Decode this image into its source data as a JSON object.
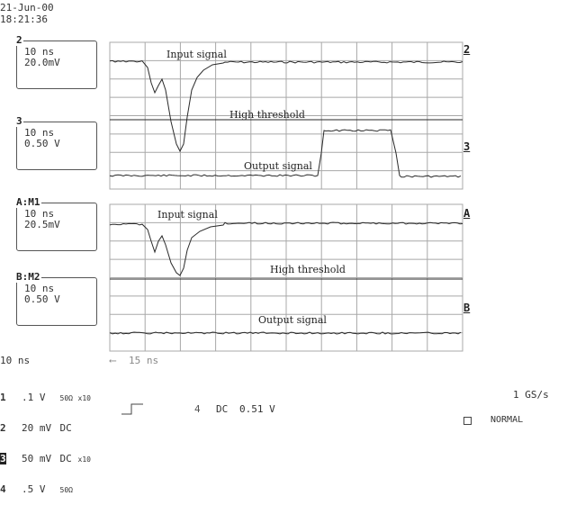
{
  "header": {
    "date": "21-Jun-00",
    "time": "18:21:36"
  },
  "traces": [
    {
      "tag": "2",
      "timebase": "10 ns",
      "scale": "20.0mV",
      "marker": "2"
    },
    {
      "tag": "3",
      "timebase": "10 ns",
      "scale": "0.50 V",
      "marker": "3"
    },
    {
      "tag": "A:M1",
      "timebase": "10 ns",
      "scale": "20.5mV",
      "marker": "A"
    },
    {
      "tag": "B:M2",
      "timebase": "10 ns",
      "scale": "0.50 V",
      "marker": "B"
    }
  ],
  "grid_labels": {
    "top_input": "Input signal",
    "top_threshold": "High threshold",
    "top_output": "Output signal",
    "bot_input": "Input signal",
    "bot_threshold": "High threshold",
    "bot_output": "Output signal"
  },
  "timebase_readout": "10 ns",
  "cursor_readout": "15 ns",
  "channels": [
    {
      "num": "1",
      "volts": ".1",
      "unit": "V",
      "coupling": "50Ω",
      "probe": "x10"
    },
    {
      "num": "2",
      "volts": "20",
      "unit": "mV",
      "coupling": "DC",
      "probe": ""
    },
    {
      "num": "3",
      "volts": "50",
      "unit": "mV",
      "coupling": "DC",
      "probe": "x10"
    },
    {
      "num": "4",
      "volts": ".5",
      "unit": "V",
      "coupling": "50Ω",
      "probe": ""
    }
  ],
  "trigger": {
    "source": "4",
    "coupling": "DC",
    "level": "0.51 V"
  },
  "sample_rate": "1 GS/s",
  "trigger_mode": "NORMAL",
  "colors": {
    "grid": "#a8a8a8",
    "trace": "#2a2a2a",
    "background": "#ffffff"
  }
}
